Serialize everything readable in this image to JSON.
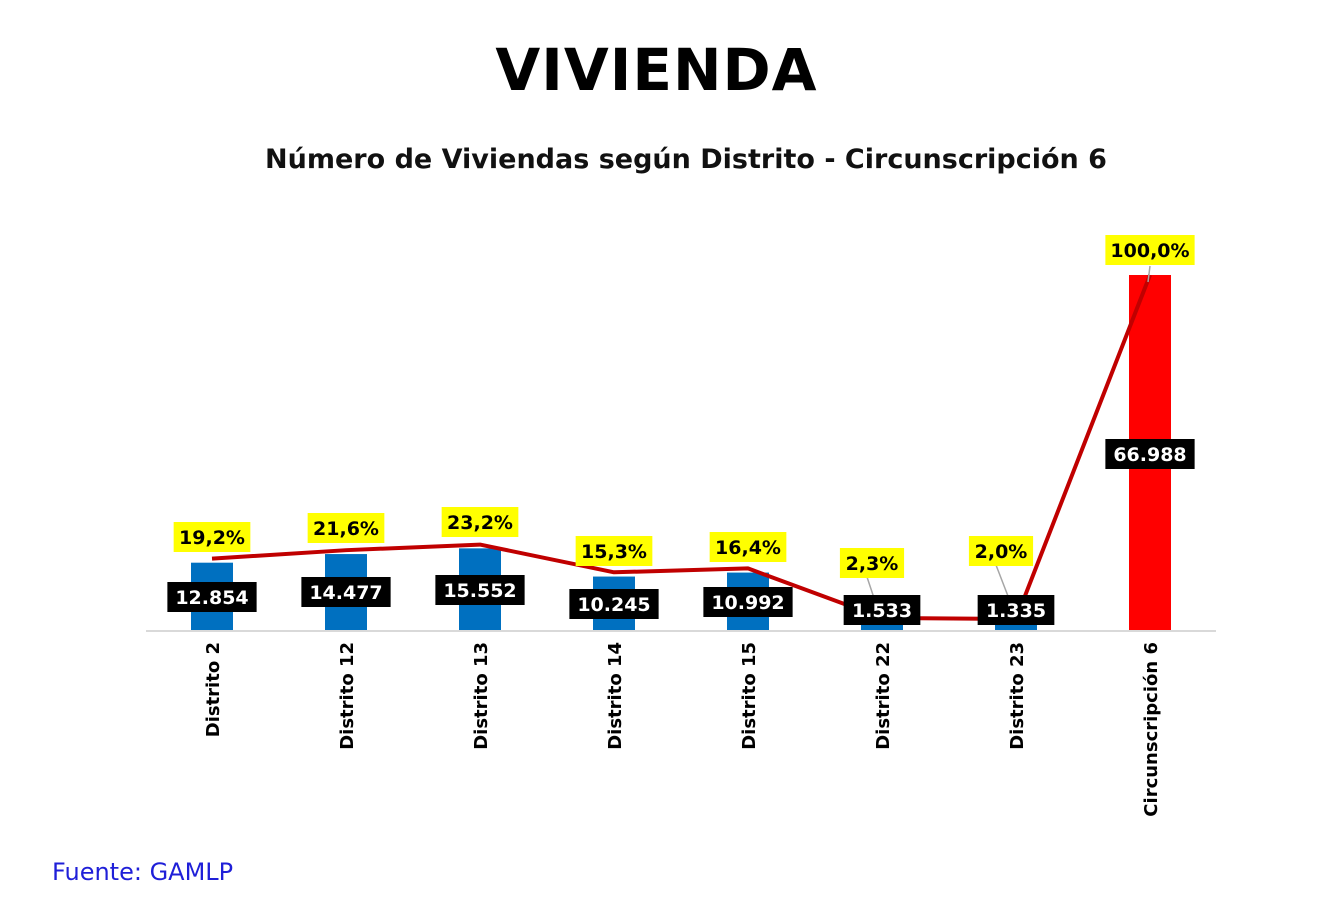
{
  "page": {
    "title": "VIVIENDA",
    "source": "Fuente:  GAMLP"
  },
  "colors": {
    "bar_blue": "#0070c0",
    "bar_red": "#ff0000",
    "line_red": "#c00000",
    "pct_label_bg": "#ffff00",
    "value_label_bg": "#000000",
    "value_label_text": "#ffffff",
    "source_text": "#1f1fd8"
  },
  "chart_data": {
    "type": "bar",
    "title": "Número de Viviendas según Distrito - Circunscripción 6",
    "categories": [
      "Distrito 2",
      "Distrito 12",
      "Distrito 13",
      "Distrito 14",
      "Distrito 15",
      "Distrito 22",
      "Distrito 23",
      "Circunscripción 6"
    ],
    "series": [
      {
        "kind": "bar",
        "values": [
          12854,
          14477,
          15552,
          10245,
          10992,
          1533,
          1335,
          66988
        ],
        "labels": [
          "12.854",
          "14.477",
          "15.552",
          "10.245",
          "10.992",
          "1.533",
          "1.335",
          "66.988"
        ]
      },
      {
        "kind": "line",
        "values": [
          19.2,
          21.6,
          23.2,
          15.3,
          16.4,
          2.3,
          2.0,
          100.0
        ],
        "labels": [
          "19,2%",
          "21,6%",
          "23,2%",
          "15,3%",
          "16,4%",
          "2,3%",
          "2,0%",
          "100,0%"
        ]
      }
    ],
    "grid": false,
    "legend": "none"
  }
}
